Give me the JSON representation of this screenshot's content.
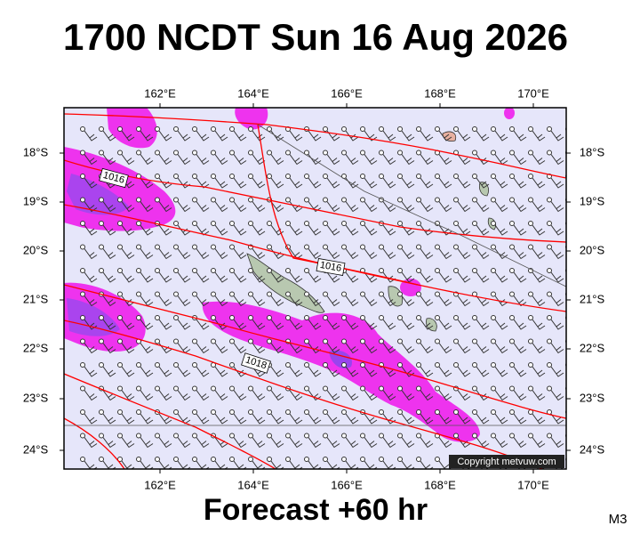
{
  "title": "1700 NCDT Sun 16 Aug 2026",
  "footer": "Forecast +60 hr",
  "model": "M3",
  "copyright": "Copyright metvuw.com",
  "lon_labels": [
    "162°E",
    "164°E",
    "166°E",
    "168°E",
    "170°E"
  ],
  "lat_labels": [
    "18°S",
    "19°S",
    "20°S",
    "21°S",
    "22°S",
    "23°S",
    "24°S"
  ],
  "isobar_labels": [
    "1016",
    "1016",
    "1018"
  ]
}
